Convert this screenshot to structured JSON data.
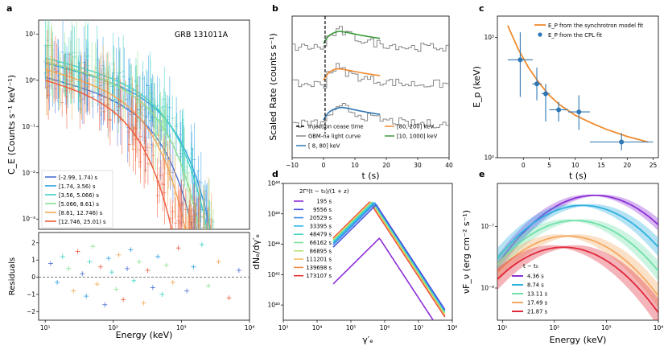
{
  "chart_data": [
    {
      "panel": "a",
      "type": "line",
      "title": "GRB 131011A",
      "xlabel": "Energy (keV)",
      "ylabel": "C_E (Counts s⁻¹ keV⁻¹)",
      "resid_ylabel": "Residuals",
      "xscale": "log",
      "yscale": "log",
      "xlim": [
        8,
        10000
      ],
      "ylim": [
        0.0006,
        20
      ],
      "resid_ylim": [
        -2.5,
        2.6
      ],
      "xticks": [
        "10¹",
        "10²",
        "10³",
        "10⁴"
      ],
      "yticks": [
        "10⁻³",
        "10⁻²",
        "10⁻¹",
        "10⁰",
        "10¹"
      ],
      "resid_yticks": [
        "−2",
        "−1",
        "0",
        "1",
        "2"
      ],
      "legend_position": "lower-left",
      "series": [
        {
          "name": "[-2.99, 1.74) s",
          "color": "#4a6fd4",
          "norm": 1.0,
          "epeak": 250,
          "points": [
            [
              12,
              1.1
            ],
            [
              20,
              0.95
            ],
            [
              40,
              0.8
            ],
            [
              80,
              0.55
            ],
            [
              150,
              0.32
            ],
            [
              300,
              0.14
            ],
            [
              600,
              0.035
            ],
            [
              1000,
              0.012
            ]
          ]
        },
        {
          "name": "[1.74, 3.56) s",
          "color": "#2e9ee6",
          "norm": 2.0,
          "epeak": 420,
          "points": [
            [
              12,
              2.1
            ],
            [
              25,
              1.9
            ],
            [
              50,
              1.5
            ],
            [
              100,
              1.0
            ],
            [
              200,
              0.6
            ],
            [
              400,
              0.3
            ],
            [
              800,
              0.1
            ],
            [
              1500,
              0.03
            ]
          ]
        },
        {
          "name": "[3.56, 5.066) s",
          "color": "#3fd1c6",
          "norm": 2.6,
          "epeak": 360,
          "points": [
            [
              12,
              2.6
            ],
            [
              25,
              2.3
            ],
            [
              50,
              1.8
            ],
            [
              100,
              1.1
            ],
            [
              200,
              0.6
            ],
            [
              400,
              0.25
            ],
            [
              800,
              0.07
            ]
          ]
        },
        {
          "name": "[5.066, 8.61) s",
          "color": "#8be08f",
          "norm": 2.2,
          "epeak": 280,
          "points": [
            [
              12,
              2.4
            ],
            [
              25,
              2.0
            ],
            [
              50,
              1.5
            ],
            [
              100,
              0.9
            ],
            [
              200,
              0.45
            ],
            [
              400,
              0.15
            ],
            [
              800,
              0.04
            ]
          ]
        },
        {
          "name": "[8.61, 12.746) s",
          "color": "#f0a856",
          "norm": 1.5,
          "epeak": 180,
          "points": [
            [
              12,
              1.7
            ],
            [
              25,
              1.4
            ],
            [
              50,
              1.0
            ],
            [
              100,
              0.55
            ],
            [
              200,
              0.22
            ],
            [
              400,
              0.06
            ]
          ]
        },
        {
          "name": "[12.746, 25.01) s",
          "color": "#ef5c3a",
          "norm": 0.9,
          "epeak": 120,
          "points": [
            [
              12,
              0.95
            ],
            [
              25,
              0.8
            ],
            [
              50,
              0.55
            ],
            [
              100,
              0.28
            ],
            [
              200,
              0.09
            ],
            [
              400,
              0.02
            ]
          ]
        }
      ],
      "residuals": [
        [
          12,
          0.8
        ],
        [
          15,
          -0.3
        ],
        [
          18,
          1.2
        ],
        [
          22,
          0.5
        ],
        [
          26,
          -0.8
        ],
        [
          30,
          1.5
        ],
        [
          35,
          0.2
        ],
        [
          40,
          -1.1
        ],
        [
          45,
          0.9
        ],
        [
          50,
          1.8
        ],
        [
          58,
          -0.4
        ],
        [
          65,
          0.6
        ],
        [
          75,
          -1.6
        ],
        [
          85,
          1.1
        ],
        [
          95,
          0.3
        ],
        [
          110,
          -0.7
        ],
        [
          120,
          1.3
        ],
        [
          140,
          -1.3
        ],
        [
          160,
          0.5
        ],
        [
          180,
          1.6
        ],
        [
          200,
          -0.2
        ],
        [
          240,
          0.9
        ],
        [
          280,
          -1.5
        ],
        [
          320,
          0.4
        ],
        [
          380,
          -0.6
        ],
        [
          450,
          1.2
        ],
        [
          520,
          -1.0
        ],
        [
          600,
          0.7
        ],
        [
          750,
          -0.3
        ],
        [
          900,
          1.7
        ],
        [
          1200,
          -0.8
        ],
        [
          1500,
          0.6
        ],
        [
          2000,
          1.9
        ],
        [
          2500,
          -0.5
        ],
        [
          3500,
          0.9
        ],
        [
          5000,
          -1.2
        ],
        [
          7000,
          0.4
        ]
      ]
    },
    {
      "panel": "b",
      "type": "line",
      "xlabel": "t (s)",
      "ylabel": "Scaled Rate (counts s⁻¹)",
      "xlim": [
        -10,
        40
      ],
      "xticks": [
        "−10",
        "0",
        "10",
        "20",
        "30",
        "40"
      ],
      "injection_cease_time": 0.5,
      "bands": [
        {
          "name": "[10, 1000] keV",
          "color": "#3a9a3a",
          "baseline": 0.78,
          "peak_t": 5,
          "peak": 0.9
        },
        {
          "name": "[80, 200] keV",
          "color": "#f08a2c",
          "baseline": 0.52,
          "peak_t": 4,
          "peak": 0.64
        },
        {
          "name": "[ 8, 80] keV",
          "color": "#2e76b4",
          "baseline": 0.24,
          "peak_t": 6,
          "peak": 0.36
        }
      ],
      "legend": [
        "injection cease time",
        "GBM-na light curve",
        "[ 8, 80] keV",
        "[80, 200] keV",
        "[10, 1000] keV"
      ]
    },
    {
      "panel": "c",
      "type": "scatter",
      "xlabel": "t (s)",
      "ylabel": "E_p (keV)",
      "yscale": "log",
      "xlim": [
        -5,
        26
      ],
      "ylim": [
        100,
        1500
      ],
      "xticks": [
        "0",
        "5",
        "10",
        "15",
        "20",
        "25"
      ],
      "yticks": [
        "10²",
        "10³"
      ],
      "legend": [
        "E_P from the synchrotron model fit",
        "E_P from the CPL fit"
      ],
      "points": [
        {
          "t": -0.6,
          "ep": 650,
          "xerr": 2.4,
          "ylo": 320,
          "yhi": 1100
        },
        {
          "t": 2.6,
          "ep": 410,
          "xerr": 0.9,
          "ylo": 300,
          "yhi": 560
        },
        {
          "t": 4.3,
          "ep": 340,
          "xerr": 0.8,
          "ylo": 200,
          "yhi": 410
        },
        {
          "t": 6.8,
          "ep": 250,
          "xerr": 1.8,
          "ylo": 200,
          "yhi": 290
        },
        {
          "t": 10.7,
          "ep": 240,
          "xerr": 2.1,
          "ylo": 170,
          "yhi": 330
        },
        {
          "t": 18.9,
          "ep": 135,
          "xerr": 6.1,
          "ylo": 115,
          "yhi": 160
        }
      ],
      "model_curve": [
        [
          -3,
          1250
        ],
        [
          -1,
          800
        ],
        [
          1,
          560
        ],
        [
          3,
          420
        ],
        [
          5,
          330
        ],
        [
          7,
          275
        ],
        [
          10,
          225
        ],
        [
          13,
          195
        ],
        [
          16,
          172
        ],
        [
          20,
          150
        ],
        [
          24,
          135
        ]
      ]
    },
    {
      "panel": "d",
      "type": "line",
      "xlabel": "γ′ₑ",
      "ylabel": "dNₑ/dγ′ₑ",
      "xscale": "log",
      "yscale": "log",
      "xlim": [
        1000,
        100000000
      ],
      "ylim": [
        1e+39,
        1e+48
      ],
      "xticks": [
        "10³",
        "10⁴",
        "10⁵",
        "10⁶",
        "10⁷",
        "10⁸"
      ],
      "yticks": [
        "10⁴⁰",
        "10⁴²",
        "10⁴⁴",
        "10⁴⁶",
        "10⁴⁸"
      ],
      "legend_title": "2Γ²(t − t₀)/(1 + z)",
      "series": [
        {
          "name": "195 s",
          "color": "#8b2fd6",
          "gpeak": 700000,
          "npeak": 2.5e+44
        },
        {
          "name": "9556 s",
          "color": "#4a55e0",
          "gpeak": 560000,
          "npeak": 4e+46
        },
        {
          "name": "20529 s",
          "color": "#3a8cf0",
          "gpeak": 520000,
          "npeak": 5e+46
        },
        {
          "name": "33395 s",
          "color": "#2eb8e8",
          "gpeak": 490000,
          "npeak": 5.5e+46
        },
        {
          "name": "48479 s",
          "color": "#44d7c3",
          "gpeak": 460000,
          "npeak": 5.8e+46
        },
        {
          "name": "66162 s",
          "color": "#7fe09a",
          "gpeak": 440000,
          "npeak": 6e+46
        },
        {
          "name": "86895 s",
          "color": "#b8e27a",
          "gpeak": 420000,
          "npeak": 6e+46
        },
        {
          "name": "111201 s",
          "color": "#f0c060",
          "gpeak": 400000,
          "npeak": 6e+46
        },
        {
          "name": "139698 s",
          "color": "#f08a48",
          "gpeak": 380000,
          "npeak": 6e+46
        },
        {
          "name": "173107 s",
          "color": "#e83030",
          "gpeak": 360000,
          "npeak": 6e+46
        }
      ]
    },
    {
      "panel": "e",
      "type": "area",
      "xlabel": "Energy (keV)",
      "ylabel": "νF_ν (erg cm⁻² s⁻¹)",
      "xscale": "log",
      "yscale": "log",
      "xlim": [
        8,
        10000
      ],
      "ylim": [
        3e-09,
        5e-07
      ],
      "xticks": [
        "10¹",
        "10²",
        "10³",
        "10⁴"
      ],
      "yticks": [
        "10⁻⁸",
        "10⁻⁷"
      ],
      "legend_title": "t − t₀",
      "series": [
        {
          "name": "4.36 s",
          "color": "#8b2fd6",
          "epeak": 600,
          "peak": 3.2e-07,
          "band": 0.22
        },
        {
          "name": "8.74 s",
          "color": "#2eb0e0",
          "epeak": 350,
          "peak": 2.2e-07,
          "band": 0.3
        },
        {
          "name": "13.11 s",
          "color": "#6fe0a8",
          "epeak": 250,
          "peak": 1.25e-07,
          "band": 0.3
        },
        {
          "name": "17.49 s",
          "color": "#f4a860",
          "epeak": 180,
          "peak": 7e-08,
          "band": 0.35
        },
        {
          "name": "21.87 s",
          "color": "#e0283a",
          "epeak": 150,
          "peak": 4.6e-08,
          "band": 0.4
        }
      ]
    }
  ],
  "labels": {
    "a": "a",
    "b": "b",
    "c": "c",
    "d": "d",
    "e": "e"
  }
}
